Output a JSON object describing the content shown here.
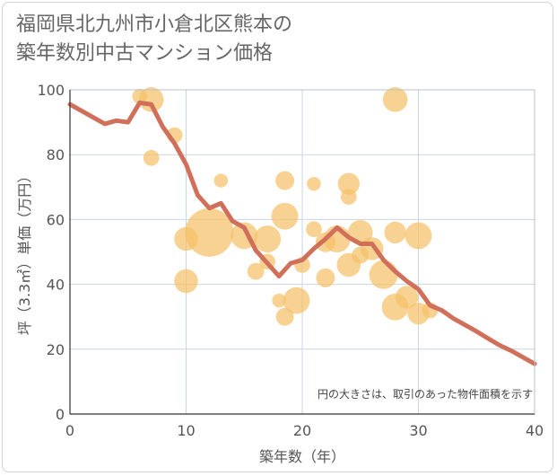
{
  "chart_data": {
    "type": "scatter",
    "title_line1": "福岡県北九州市小倉北区熊本の",
    "title_line2": "築年数別中古マンション価格",
    "xlabel": "築年数（年）",
    "ylabel": "坪（3.3㎡）単価（万円）",
    "xlim": [
      0,
      40
    ],
    "ylim": [
      0,
      100
    ],
    "xticks": [
      0,
      10,
      20,
      30,
      40
    ],
    "yticks": [
      0,
      20,
      40,
      60,
      80,
      100
    ],
    "note": "円の大きさは、取引のあった物件面積を示す",
    "colors": {
      "bubble": "#f5c168",
      "line": "#d0705a",
      "grid": "#c9d6e6"
    },
    "bubbles": [
      {
        "x": 6,
        "y": 98,
        "size": 0.3
      },
      {
        "x": 7,
        "y": 97,
        "size": 0.8
      },
      {
        "x": 7,
        "y": 79,
        "size": 0.35
      },
      {
        "x": 9,
        "y": 86,
        "size": 0.35
      },
      {
        "x": 10,
        "y": 54,
        "size": 0.75
      },
      {
        "x": 10,
        "y": 41,
        "size": 0.75
      },
      {
        "x": 12,
        "y": 56,
        "size": 2.0
      },
      {
        "x": 13,
        "y": 72,
        "size": 0.25
      },
      {
        "x": 15,
        "y": 55,
        "size": 0.9
      },
      {
        "x": 16,
        "y": 44,
        "size": 0.4
      },
      {
        "x": 17,
        "y": 54,
        "size": 0.9
      },
      {
        "x": 17,
        "y": 47,
        "size": 0.35
      },
      {
        "x": 18,
        "y": 35,
        "size": 0.25
      },
      {
        "x": 18.5,
        "y": 72,
        "size": 0.5
      },
      {
        "x": 18.5,
        "y": 61,
        "size": 0.9
      },
      {
        "x": 18.5,
        "y": 30,
        "size": 0.45
      },
      {
        "x": 19.5,
        "y": 35,
        "size": 0.9
      },
      {
        "x": 20,
        "y": 46,
        "size": 0.35
      },
      {
        "x": 21,
        "y": 71,
        "size": 0.25
      },
      {
        "x": 21,
        "y": 57,
        "size": 0.35
      },
      {
        "x": 22,
        "y": 53,
        "size": 0.55
      },
      {
        "x": 22,
        "y": 42,
        "size": 0.5
      },
      {
        "x": 23,
        "y": 54,
        "size": 0.9
      },
      {
        "x": 24,
        "y": 71,
        "size": 0.65
      },
      {
        "x": 24,
        "y": 67,
        "size": 0.35
      },
      {
        "x": 24,
        "y": 46,
        "size": 0.75
      },
      {
        "x": 25,
        "y": 56,
        "size": 0.8
      },
      {
        "x": 25,
        "y": 49,
        "size": 0.4
      },
      {
        "x": 26,
        "y": 51,
        "size": 0.7
      },
      {
        "x": 27,
        "y": 43,
        "size": 1.0
      },
      {
        "x": 28,
        "y": 97,
        "size": 0.8
      },
      {
        "x": 28,
        "y": 56,
        "size": 0.65
      },
      {
        "x": 28,
        "y": 33,
        "size": 0.9
      },
      {
        "x": 29,
        "y": 36,
        "size": 0.7
      },
      {
        "x": 30,
        "y": 55,
        "size": 0.9
      },
      {
        "x": 30,
        "y": 31,
        "size": 0.65
      },
      {
        "x": 31,
        "y": 32,
        "size": 0.35
      }
    ],
    "line": {
      "x": [
        0,
        1,
        2,
        3,
        4,
        5,
        6,
        7,
        8,
        9,
        10,
        11,
        12,
        13,
        14,
        15,
        16,
        17,
        18,
        19,
        20,
        21,
        22,
        23,
        24,
        25,
        26,
        27,
        28,
        29,
        30,
        31,
        32,
        33,
        34,
        35,
        36,
        37,
        38,
        39,
        40
      ],
      "y": [
        95.5,
        93.5,
        91.5,
        89.5,
        90.5,
        90,
        96,
        95.5,
        88.5,
        83.5,
        77,
        67.5,
        63.5,
        65,
        59.5,
        57.5,
        50.5,
        46.5,
        42.5,
        46.5,
        47.5,
        51,
        54,
        57.5,
        54.5,
        52.5,
        52.5,
        47.5,
        44,
        41,
        38.5,
        33.5,
        32,
        29.5,
        27.5,
        25.5,
        23.3,
        21.2,
        19.5,
        17.5,
        15.5
      ]
    }
  }
}
